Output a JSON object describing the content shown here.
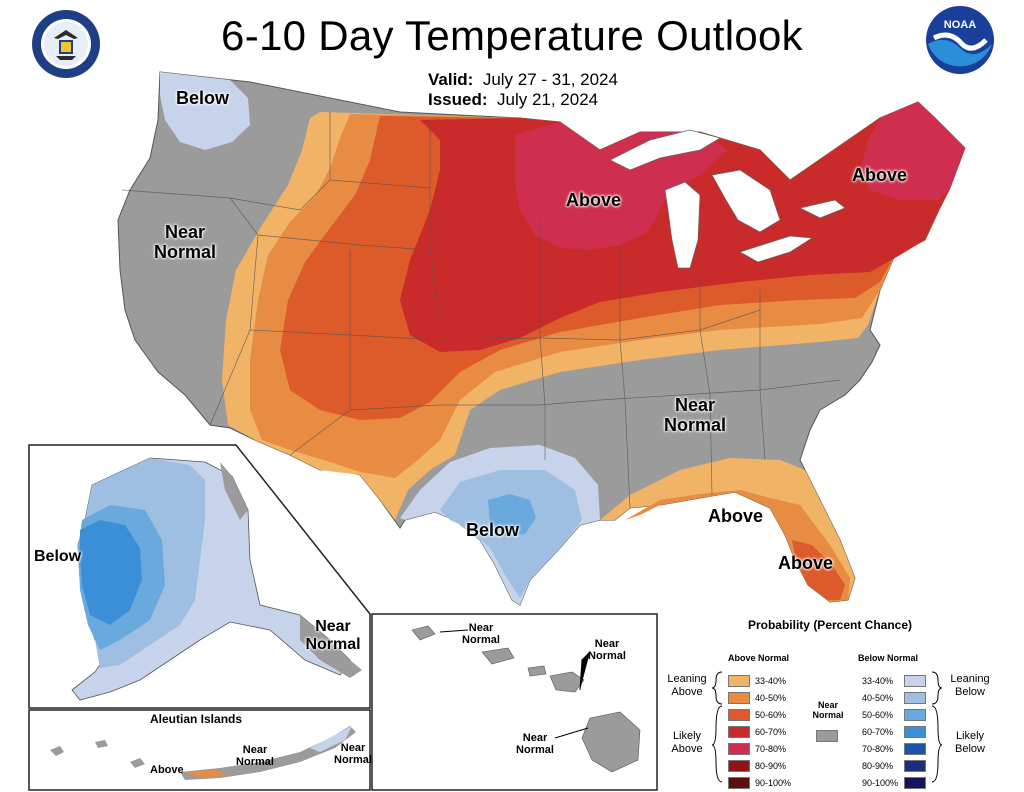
{
  "header": {
    "title": "6-10 Day Temperature Outlook",
    "valid_label": "Valid:",
    "valid_value": "July 27 - 31, 2024",
    "issued_label": "Issued:",
    "issued_value": "July 21, 2024"
  },
  "logos": {
    "left": "department-of-commerce-seal",
    "right": "noaa-logo"
  },
  "map_labels": {
    "below_nw": "Below",
    "near_normal_west": "Near Normal",
    "above_mid": "Above",
    "above_ne": "Above",
    "near_normal_se": "Near Normal",
    "below_tx": "Below",
    "above_se1": "Above",
    "above_se2": "Above"
  },
  "alaska": {
    "below": "Below",
    "near_normal": "Near Normal"
  },
  "aleutian": {
    "title": "Aleutian Islands",
    "above": "Above",
    "near_normal_1": "Near Normal",
    "near_normal_2": "Near Normal"
  },
  "hawaii": {
    "near_normal_1": "Near Normal",
    "near_normal_2": "Near Normal",
    "near_normal_3": "Near Normal"
  },
  "legend": {
    "title": "Probability (Percent Chance)",
    "above_header": "Above Normal",
    "below_header": "Below Normal",
    "near_header": "Near Normal",
    "leaning_above": "Leaning Above",
    "likely_above": "Likely Above",
    "leaning_below": "Leaning Below",
    "likely_below": "Likely Below",
    "ranges": [
      "33-40%",
      "40-50%",
      "50-60%",
      "60-70%",
      "70-80%",
      "80-90%",
      "90-100%"
    ],
    "above_colors": [
      "#f1b366",
      "#e98c43",
      "#dd5a2a",
      "#c92a2a",
      "#cf2f4f",
      "#8f1515",
      "#5a1010"
    ],
    "below_colors": [
      "#c7d3ea",
      "#9fbfe2",
      "#69a9dd",
      "#3a8fd6",
      "#1b56a6",
      "#1a2f7a",
      "#14145a"
    ],
    "near_color": "#9b9b9b"
  }
}
